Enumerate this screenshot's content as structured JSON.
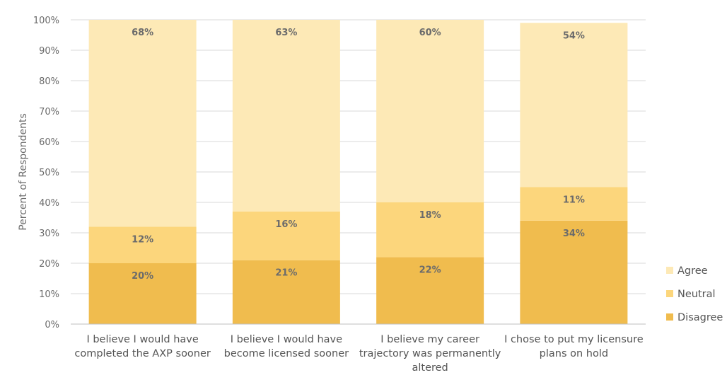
{
  "chart_data": {
    "type": "bar",
    "stacked": true,
    "title": "",
    "xlabel": "",
    "ylabel": "Percent of Respondents",
    "ylim": [
      0,
      100
    ],
    "ytick_values": [
      0,
      10,
      20,
      30,
      40,
      50,
      60,
      70,
      80,
      90,
      100
    ],
    "ytick_labels": [
      "0%",
      "10%",
      "20%",
      "30%",
      "40%",
      "50%",
      "60%",
      "70%",
      "80%",
      "90%",
      "100%"
    ],
    "grid": true,
    "legend_position": "bottom-right",
    "categories": [
      [
        "I believe I would have",
        "completed the AXP sooner"
      ],
      [
        "I believe I would have",
        "become licensed sooner"
      ],
      [
        "I believe my career",
        "trajectory was permanently",
        "altered"
      ],
      [
        "I chose to put my licensure",
        "plans on hold"
      ]
    ],
    "series": [
      {
        "name": "Disagree",
        "color": "#f0bc4e",
        "values": [
          20,
          21,
          22,
          34
        ],
        "labels": [
          "20%",
          "21%",
          "22%",
          "34%"
        ]
      },
      {
        "name": "Neutral",
        "color": "#fcd67c",
        "values": [
          12,
          16,
          18,
          11
        ],
        "labels": [
          "12%",
          "16%",
          "18%",
          "11%"
        ]
      },
      {
        "name": "Agree",
        "color": "#fde9b6",
        "values": [
          68,
          63,
          60,
          54
        ],
        "labels": [
          "68%",
          "63%",
          "60%",
          "54%"
        ]
      }
    ],
    "legend_order": [
      "Agree",
      "Neutral",
      "Disagree"
    ]
  }
}
